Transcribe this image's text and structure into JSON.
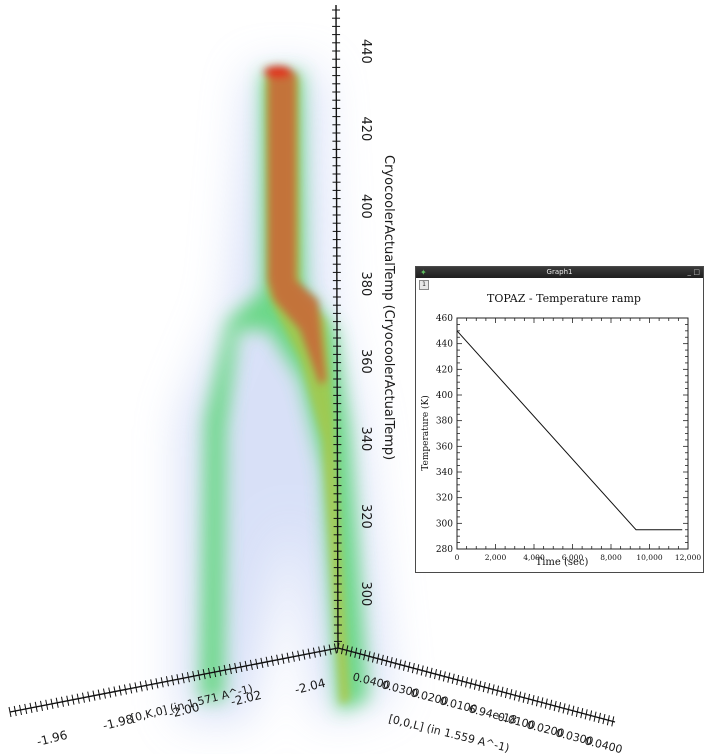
{
  "volume_view": {
    "vertical_axis": {
      "label": "CryocoolerActualTemp (CryocoolerActualTemp)",
      "ticks": [
        "440",
        "420",
        "400",
        "380",
        "360",
        "340",
        "320",
        "300"
      ]
    },
    "left_axis": {
      "label": "[0,K,0] (in 1.571 A^-1)",
      "ticks": [
        "-1.96",
        "-1.98",
        "-2.00",
        "-2.02",
        "-2.04"
      ]
    },
    "right_axis": {
      "label": "[0,0,L] (in 1.559 A^-1)",
      "ticks": [
        "0.0400",
        "0.0300",
        "0.0200",
        "0.0100",
        "6.94e-18",
        "0.0100",
        "0.0200",
        "0.0300",
        "0.0400"
      ]
    },
    "colors": {
      "hot": "#d73a1e",
      "mid": "#c96a30",
      "warm": "#9acd32",
      "cool": "#3cd85a",
      "halo": "#b8c8f0"
    }
  },
  "graph_window": {
    "window_title": "Graph1",
    "layer_tab": "1",
    "icons": {
      "app": "app-icon",
      "minimize": "minimize-icon",
      "maximize": "maximize-icon"
    },
    "controls": {
      "minimize": "_",
      "maximize": "□"
    }
  },
  "chart_data": {
    "type": "line",
    "title": "TOPAZ - Temperature ramp",
    "xlabel": "Time (sec)",
    "ylabel": "Temperature (K)",
    "xlim": [
      0,
      12000
    ],
    "ylim": [
      280,
      460
    ],
    "xticks": [
      "0",
      "2,000",
      "4,000",
      "6,000",
      "8,000",
      "10,000",
      "12,000"
    ],
    "yticks": [
      "280",
      "300",
      "320",
      "340",
      "360",
      "380",
      "400",
      "420",
      "440",
      "460"
    ],
    "grid": false,
    "series": [
      {
        "x": [
          0,
          9300,
          11700
        ],
        "y": [
          450,
          295,
          295
        ]
      }
    ]
  }
}
